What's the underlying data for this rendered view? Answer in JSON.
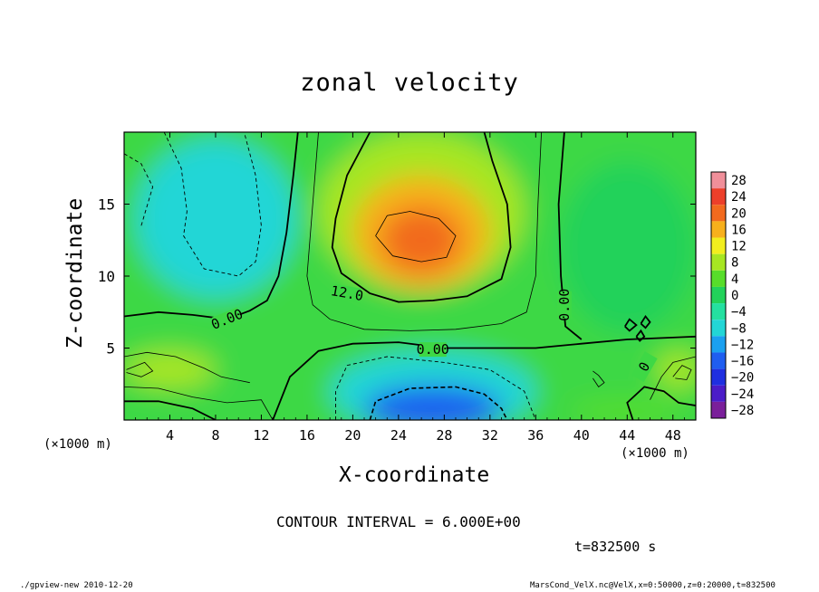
{
  "chart_data": {
    "type": "heatmap",
    "title": "zonal velocity",
    "xlabel": "X-coordinate",
    "ylabel": "Z-coordinate",
    "x_unit_label": "(×1000 m)",
    "xlim": [
      0,
      50
    ],
    "ylim": [
      0,
      20
    ],
    "xticks": [
      4,
      8,
      12,
      16,
      20,
      24,
      28,
      32,
      36,
      40,
      44,
      48
    ],
    "yticks": [
      5,
      10,
      15
    ],
    "colorbar": {
      "levels": [
        -28,
        -24,
        -20,
        -16,
        -12,
        -8,
        -4,
        0,
        4,
        8,
        12,
        16,
        20,
        24,
        28
      ],
      "labels": [
        "28",
        "24",
        "20",
        "16",
        "12",
        "8",
        "4",
        "0",
        "−4",
        "−8",
        "−12",
        "−16",
        "−20",
        "−24",
        "−28"
      ]
    },
    "contour_interval": "6.000E+00",
    "contour_labels": [
      {
        "text": "0.00",
        "x": 9,
        "z": 7.0,
        "angle": -22
      },
      {
        "text": "12.0",
        "x": 19.5,
        "z": 8.8,
        "angle": 10
      },
      {
        "text": "0.00",
        "x": 27,
        "z": 4.9,
        "angle": 0
      },
      {
        "text": "0.00",
        "x": 38.5,
        "z": 8.0,
        "angle": -90
      },
      {
        "text": "0",
        "x": 45.5,
        "z": 3.7,
        "angle": -60
      }
    ],
    "features": [
      {
        "kind": "max",
        "x": 26,
        "z": 12.5,
        "value": 20
      },
      {
        "kind": "min",
        "x": 27,
        "z": 0.5,
        "value": -22
      },
      {
        "kind": "min",
        "x": 8,
        "z": 14,
        "value": -8
      }
    ]
  },
  "texts": {
    "title": "zonal velocity",
    "xlabel": "X-coordinate",
    "ylabel": "Z-coordinate",
    "xunit_left": "(×1000 m)",
    "xunit_right": "(×1000 m)",
    "interval": "CONTOUR INTERVAL = 6.000E+00",
    "time": "t=832500 s",
    "footer_left": "./gpview-new  2010-12-20",
    "footer_right": "MarsCond_VelX.nc@VelX,x=0:50000,z=0:20000,t=832500"
  }
}
